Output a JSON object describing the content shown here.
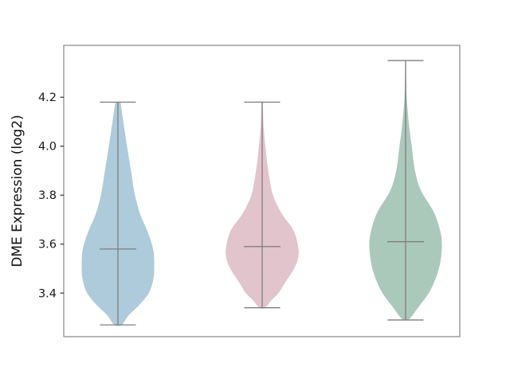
{
  "figure": {
    "background": "#ffffff"
  },
  "colors": {
    "spine": "#868686",
    "whisker_line": "#7f7f7f",
    "tick_mark": "#333333",
    "tick_label": "#1a1a1a"
  },
  "chart_data": {
    "type": "violin",
    "title": "",
    "xlabel": "",
    "ylabel": "DME Expression (log2)",
    "ylim": [
      3.222,
      4.412
    ],
    "grid": false,
    "legend": null,
    "yticks": [
      {
        "value": 3.4,
        "label": "3.4"
      },
      {
        "value": 3.6,
        "label": "3.6"
      },
      {
        "value": 3.8,
        "label": "3.8"
      },
      {
        "value": 4.0,
        "label": "4.0"
      },
      {
        "value": 4.2,
        "label": "4.2"
      }
    ],
    "x_tick_labels": [
      "",
      "",
      ""
    ],
    "series": [
      {
        "name": "group-1",
        "fill": "#aecbdb",
        "stats": {
          "min": 3.27,
          "max": 4.18,
          "median": 3.58
        },
        "profile": [
          [
            4.18,
            0.07
          ],
          [
            4.1,
            0.15
          ],
          [
            4.0,
            0.25
          ],
          [
            3.9,
            0.36
          ],
          [
            3.8,
            0.47
          ],
          [
            3.72,
            0.62
          ],
          [
            3.65,
            0.82
          ],
          [
            3.58,
            0.97
          ],
          [
            3.52,
            1.0
          ],
          [
            3.46,
            0.98
          ],
          [
            3.4,
            0.85
          ],
          [
            3.35,
            0.58
          ],
          [
            3.31,
            0.3
          ],
          [
            3.27,
            0.1
          ]
        ]
      },
      {
        "name": "group-2",
        "fill": "#e2c4cc",
        "stats": {
          "min": 3.34,
          "max": 4.18,
          "median": 3.59
        },
        "profile": [
          [
            4.18,
            0.015
          ],
          [
            4.08,
            0.04
          ],
          [
            4.0,
            0.09
          ],
          [
            3.9,
            0.17
          ],
          [
            3.8,
            0.3
          ],
          [
            3.72,
            0.56
          ],
          [
            3.66,
            0.85
          ],
          [
            3.6,
            0.98
          ],
          [
            3.55,
            1.0
          ],
          [
            3.5,
            0.88
          ],
          [
            3.44,
            0.62
          ],
          [
            3.4,
            0.45
          ],
          [
            3.37,
            0.25
          ],
          [
            3.34,
            0.08
          ]
        ]
      },
      {
        "name": "group-3",
        "fill": "#abc9bb",
        "stats": {
          "min": 3.29,
          "max": 4.35,
          "median": 3.61
        },
        "profile": [
          [
            4.35,
            0.012
          ],
          [
            4.2,
            0.03
          ],
          [
            4.08,
            0.1
          ],
          [
            4.0,
            0.17
          ],
          [
            3.9,
            0.26
          ],
          [
            3.82,
            0.42
          ],
          [
            3.73,
            0.78
          ],
          [
            3.65,
            0.96
          ],
          [
            3.59,
            1.0
          ],
          [
            3.52,
            0.95
          ],
          [
            3.46,
            0.83
          ],
          [
            3.4,
            0.64
          ],
          [
            3.34,
            0.34
          ],
          [
            3.3,
            0.14
          ],
          [
            3.29,
            0.05
          ]
        ]
      }
    ]
  }
}
